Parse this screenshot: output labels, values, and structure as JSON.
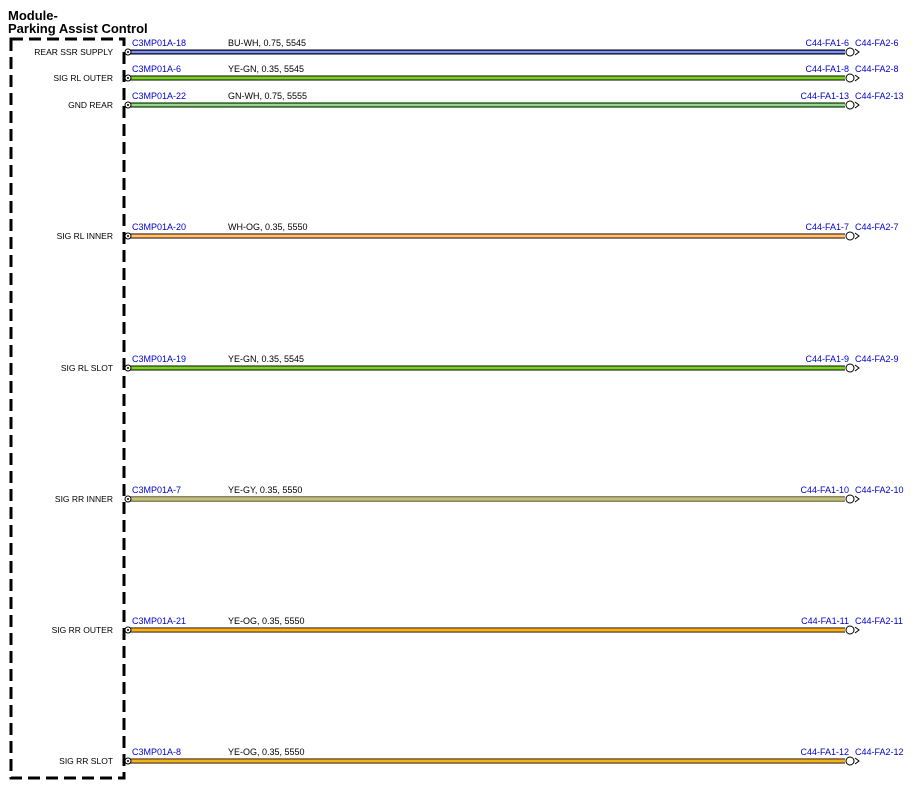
{
  "module": {
    "title_line1": "Module-",
    "title_line2": "Parking Assist Control"
  },
  "circuits": [
    {
      "signal": "REAR SSR SUPPLY",
      "pin": "C3MP01A-18",
      "wire": "BU-WH,  0.75,  5545",
      "end1": "C44-FA1-6",
      "end2": "C44-FA2-6",
      "color_main": "#1a2ea0",
      "color_stripe": "#ffffff"
    },
    {
      "signal": "SIG RL OUTER",
      "pin": "C3MP01A-6",
      "wire": "YE-GN,  0.35,  5545",
      "end1": "C44-FA1-8",
      "end2": "C44-FA2-8",
      "color_main": "#3aa82a",
      "color_stripe": "#e8e800"
    },
    {
      "signal": "GND REAR",
      "pin": "C3MP01A-22",
      "wire": "GN-WH,  0.75,  5555",
      "end1": "C44-FA1-13",
      "end2": "C44-FA2-13",
      "color_main": "#3aa82a",
      "color_stripe": "#ffffff"
    },
    {
      "signal": "SIG RL INNER",
      "pin": "C3MP01A-20",
      "wire": "WH-OG,  0.35,  5550",
      "end1": "C44-FA1-7",
      "end2": "C44-FA2-7",
      "color_main": "#f08a1c",
      "color_stripe": "#ffffff"
    },
    {
      "signal": "SIG RL SLOT",
      "pin": "C3MP01A-19",
      "wire": "YE-GN,  0.35,  5545",
      "end1": "C44-FA1-9",
      "end2": "C44-FA2-9",
      "color_main": "#3aa82a",
      "color_stripe": "#e8e800"
    },
    {
      "signal": "SIG RR INNER",
      "pin": "C3MP01A-7",
      "wire": "YE-GY,  0.35,  5550",
      "end1": "C44-FA1-10",
      "end2": "C44-FA2-10",
      "color_main": "#e8e060",
      "color_stripe": "#9a9a9a"
    },
    {
      "signal": "SIG RR OUTER",
      "pin": "C3MP01A-21",
      "wire": "YE-OG,  0.35,  5550",
      "end1": "C44-FA1-11",
      "end2": "C44-FA2-11",
      "color_main": "#f08a1c",
      "color_stripe": "#e8e800"
    },
    {
      "signal": "SIG RR SLOT",
      "pin": "C3MP01A-8",
      "wire": "YE-OG,  0.35,  5550",
      "end1": "C44-FA1-12",
      "end2": "C44-FA2-12",
      "color_main": "#f08a1c",
      "color_stripe": "#e8e800"
    }
  ]
}
